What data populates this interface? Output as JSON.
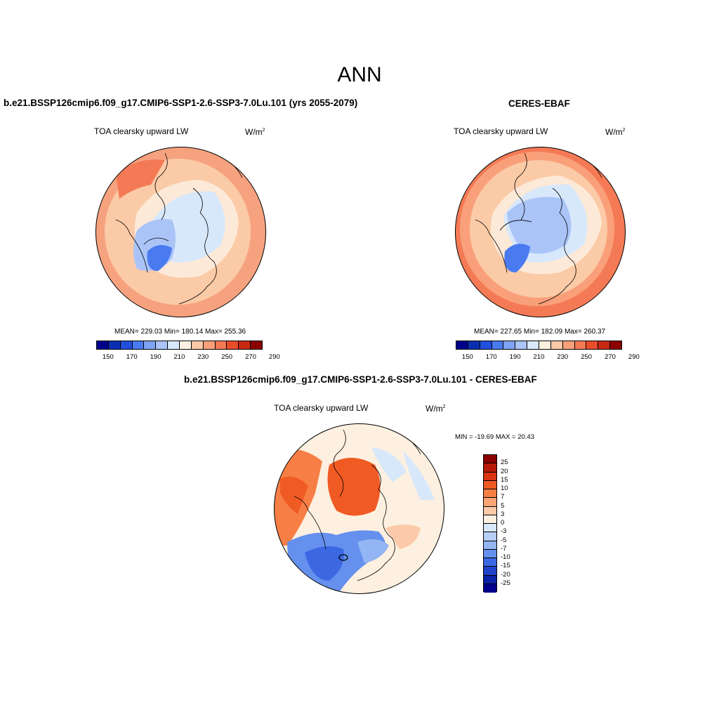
{
  "main_title": "ANN",
  "panels": [
    {
      "title": "b.e21.BSSP126cmip6.f09_g17.CMIP6-SSP1-2.6-SSP3-7.0Lu.101 (yrs 2055-2079)",
      "variable": "TOA clearsky upward LW",
      "units_base": "W/m",
      "units_exp": "2",
      "stats": "MEAN= 229.03  Min= 180.14  Max= 255.36"
    },
    {
      "title": "CERES-EBAF",
      "variable": "TOA clearsky upward LW",
      "units_base": "W/m",
      "units_exp": "2",
      "stats": "MEAN= 227.65  Min= 182.09  Max= 260.37"
    },
    {
      "title": "b.e21.BSSP126cmip6.f09_g17.CMIP6-SSP1-2.6-SSP3-7.0Lu.101 - CERES-EBAF",
      "variable": "TOA clearsky upward LW",
      "units_base": "W/m",
      "units_exp": "2",
      "stats": "MIN = -19.69 MAX =  20.43"
    }
  ],
  "colorbar_abs": {
    "colors": [
      "#00008b",
      "#0b2fb3",
      "#2150de",
      "#4a7aef",
      "#7fa3f5",
      "#aac4f8",
      "#d8e8fb",
      "#fdf0e0",
      "#fcc9a8",
      "#f9a07a",
      "#f47a55",
      "#e84d2c",
      "#c92812",
      "#8b0000"
    ],
    "ticks": [
      "150",
      "170",
      "190",
      "210",
      "230",
      "250",
      "270",
      "290"
    ]
  },
  "colorbar_diff": {
    "colors": [
      "#8b0000",
      "#b51a09",
      "#d93512",
      "#f05a23",
      "#f77e45",
      "#faa476",
      "#fccaa8",
      "#fdf0e0",
      "#d8e8fb",
      "#b7cff7",
      "#93b5f4",
      "#6590ee",
      "#3b68e2",
      "#1e43c8",
      "#0a22a5",
      "#00008b"
    ],
    "ticks": [
      "25",
      "20",
      "15",
      "10",
      "7",
      "5",
      "3",
      "0",
      "-3",
      "-5",
      "-7",
      "-10",
      "-15",
      "-20",
      "-25"
    ]
  },
  "map_colors": {
    "ocean_warm": "#f6a27f",
    "mid_warm": "#fbcaa6",
    "light_warm": "#fde9d8",
    "light_cool": "#d8e8fb",
    "cool": "#aac4f8",
    "deep_cool": "#4a7aef"
  }
}
